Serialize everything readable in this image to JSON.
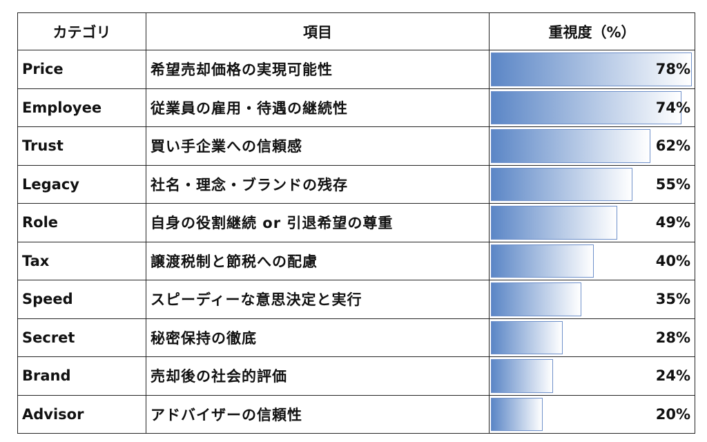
{
  "header": {
    "category": "カテゴリ",
    "item": "項目",
    "value": "重視度（%）"
  },
  "colors": {
    "bar_start": "#5b86c6",
    "bar_end": "#ffffff",
    "bar_border": "#6d8fc9"
  },
  "chart_data": {
    "type": "bar",
    "orientation": "horizontal",
    "xlim": [
      0,
      78
    ],
    "categories": [
      "Price",
      "Employee",
      "Trust",
      "Legacy",
      "Role",
      "Tax",
      "Speed",
      "Secret",
      "Brand",
      "Advisor"
    ],
    "items": [
      "希望売却価格の実現可能性",
      "従業員の雇用・待遇の継続性",
      "買い手企業への信頼感",
      "社名・理念・ブランドの残存",
      "自身の役割継続 or 引退希望の尊重",
      "譲渡税制と節税への配慮",
      "スピーディーな意思決定と実行",
      "秘密保持の徹底",
      "売却後の社会的評価",
      "アドバイザーの信頼性"
    ],
    "values": [
      78,
      74,
      62,
      55,
      49,
      40,
      35,
      28,
      24,
      20
    ],
    "labels": [
      "78%",
      "74%",
      "62%",
      "55%",
      "49%",
      "40%",
      "35%",
      "28%",
      "24%",
      "20%"
    ]
  }
}
